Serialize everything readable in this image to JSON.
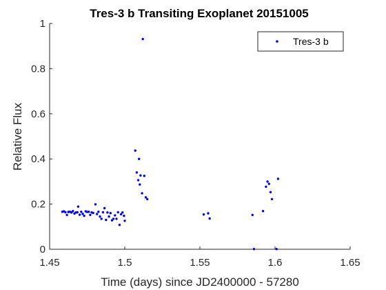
{
  "chart_data": {
    "type": "scatter",
    "title": "Tres-3 b Transiting Exoplanet 20151005",
    "xlabel": "Time (days) since JD2400000 - 57280",
    "ylabel": "Relative Flux",
    "xlim": [
      1.45,
      1.65
    ],
    "ylim": [
      0,
      1
    ],
    "xticks": [
      1.45,
      1.5,
      1.55,
      1.6,
      1.65
    ],
    "xtick_labels": [
      "1.45",
      "1.5",
      "1.55",
      "1.6",
      "1.65"
    ],
    "yticks": [
      0,
      0.2,
      0.4,
      0.6,
      0.8,
      1
    ],
    "ytick_labels": [
      "0",
      "0.2",
      "0.4",
      "0.6",
      "0.8",
      "1"
    ],
    "grid": false,
    "legend_position": "top-right",
    "series": [
      {
        "name": "Tres-3 b",
        "color": "#0000ff",
        "marker": "dot",
        "points": [
          [
            1.4585,
            0.166
          ],
          [
            1.4595,
            0.168
          ],
          [
            1.4605,
            0.164
          ],
          [
            1.4615,
            0.152
          ],
          [
            1.4625,
            0.165
          ],
          [
            1.4635,
            0.166
          ],
          [
            1.4645,
            0.163
          ],
          [
            1.4655,
            0.169
          ],
          [
            1.4665,
            0.158
          ],
          [
            1.4675,
            0.163
          ],
          [
            1.4685,
            0.164
          ],
          [
            1.469,
            0.189
          ],
          [
            1.47,
            0.153
          ],
          [
            1.471,
            0.166
          ],
          [
            1.472,
            0.157
          ],
          [
            1.473,
            0.148
          ],
          [
            1.474,
            0.168
          ],
          [
            1.475,
            0.165
          ],
          [
            1.476,
            0.166
          ],
          [
            1.477,
            0.152
          ],
          [
            1.478,
            0.163
          ],
          [
            1.479,
            0.161
          ],
          [
            1.4805,
            0.199
          ],
          [
            1.4815,
            0.156
          ],
          [
            1.4825,
            0.166
          ],
          [
            1.4835,
            0.145
          ],
          [
            1.4845,
            0.135
          ],
          [
            1.4855,
            0.164
          ],
          [
            1.4865,
            0.182
          ],
          [
            1.4875,
            0.13
          ],
          [
            1.4885,
            0.163
          ],
          [
            1.4895,
            0.145
          ],
          [
            1.4905,
            0.16
          ],
          [
            1.4915,
            0.128
          ],
          [
            1.4925,
            0.135
          ],
          [
            1.4935,
            0.15
          ],
          [
            1.4945,
            0.135
          ],
          [
            1.4955,
            0.164
          ],
          [
            1.4965,
            0.108
          ],
          [
            1.4975,
            0.155
          ],
          [
            1.4985,
            0.163
          ],
          [
            1.4995,
            0.148
          ],
          [
            1.5,
            0.126
          ],
          [
            1.507,
            0.437
          ],
          [
            1.508,
            0.34
          ],
          [
            1.509,
            0.306
          ],
          [
            1.5095,
            0.4
          ],
          [
            1.51,
            0.287
          ],
          [
            1.5105,
            0.327
          ],
          [
            1.5115,
            0.248
          ],
          [
            1.512,
            0.931
          ],
          [
            1.513,
            0.325
          ],
          [
            1.514,
            0.23
          ],
          [
            1.515,
            0.222
          ],
          [
            1.5525,
            0.154
          ],
          [
            1.5555,
            0.159
          ],
          [
            1.5565,
            0.136
          ],
          [
            1.585,
            0.152
          ],
          [
            1.586,
            0.001
          ],
          [
            1.592,
            0.169
          ],
          [
            1.594,
            0.277
          ],
          [
            1.595,
            0.3
          ],
          [
            1.596,
            0.29
          ],
          [
            1.597,
            0.253
          ],
          [
            1.598,
            0.222
          ],
          [
            1.601,
            0.001
          ],
          [
            1.602,
            0.312
          ]
        ]
      }
    ]
  }
}
